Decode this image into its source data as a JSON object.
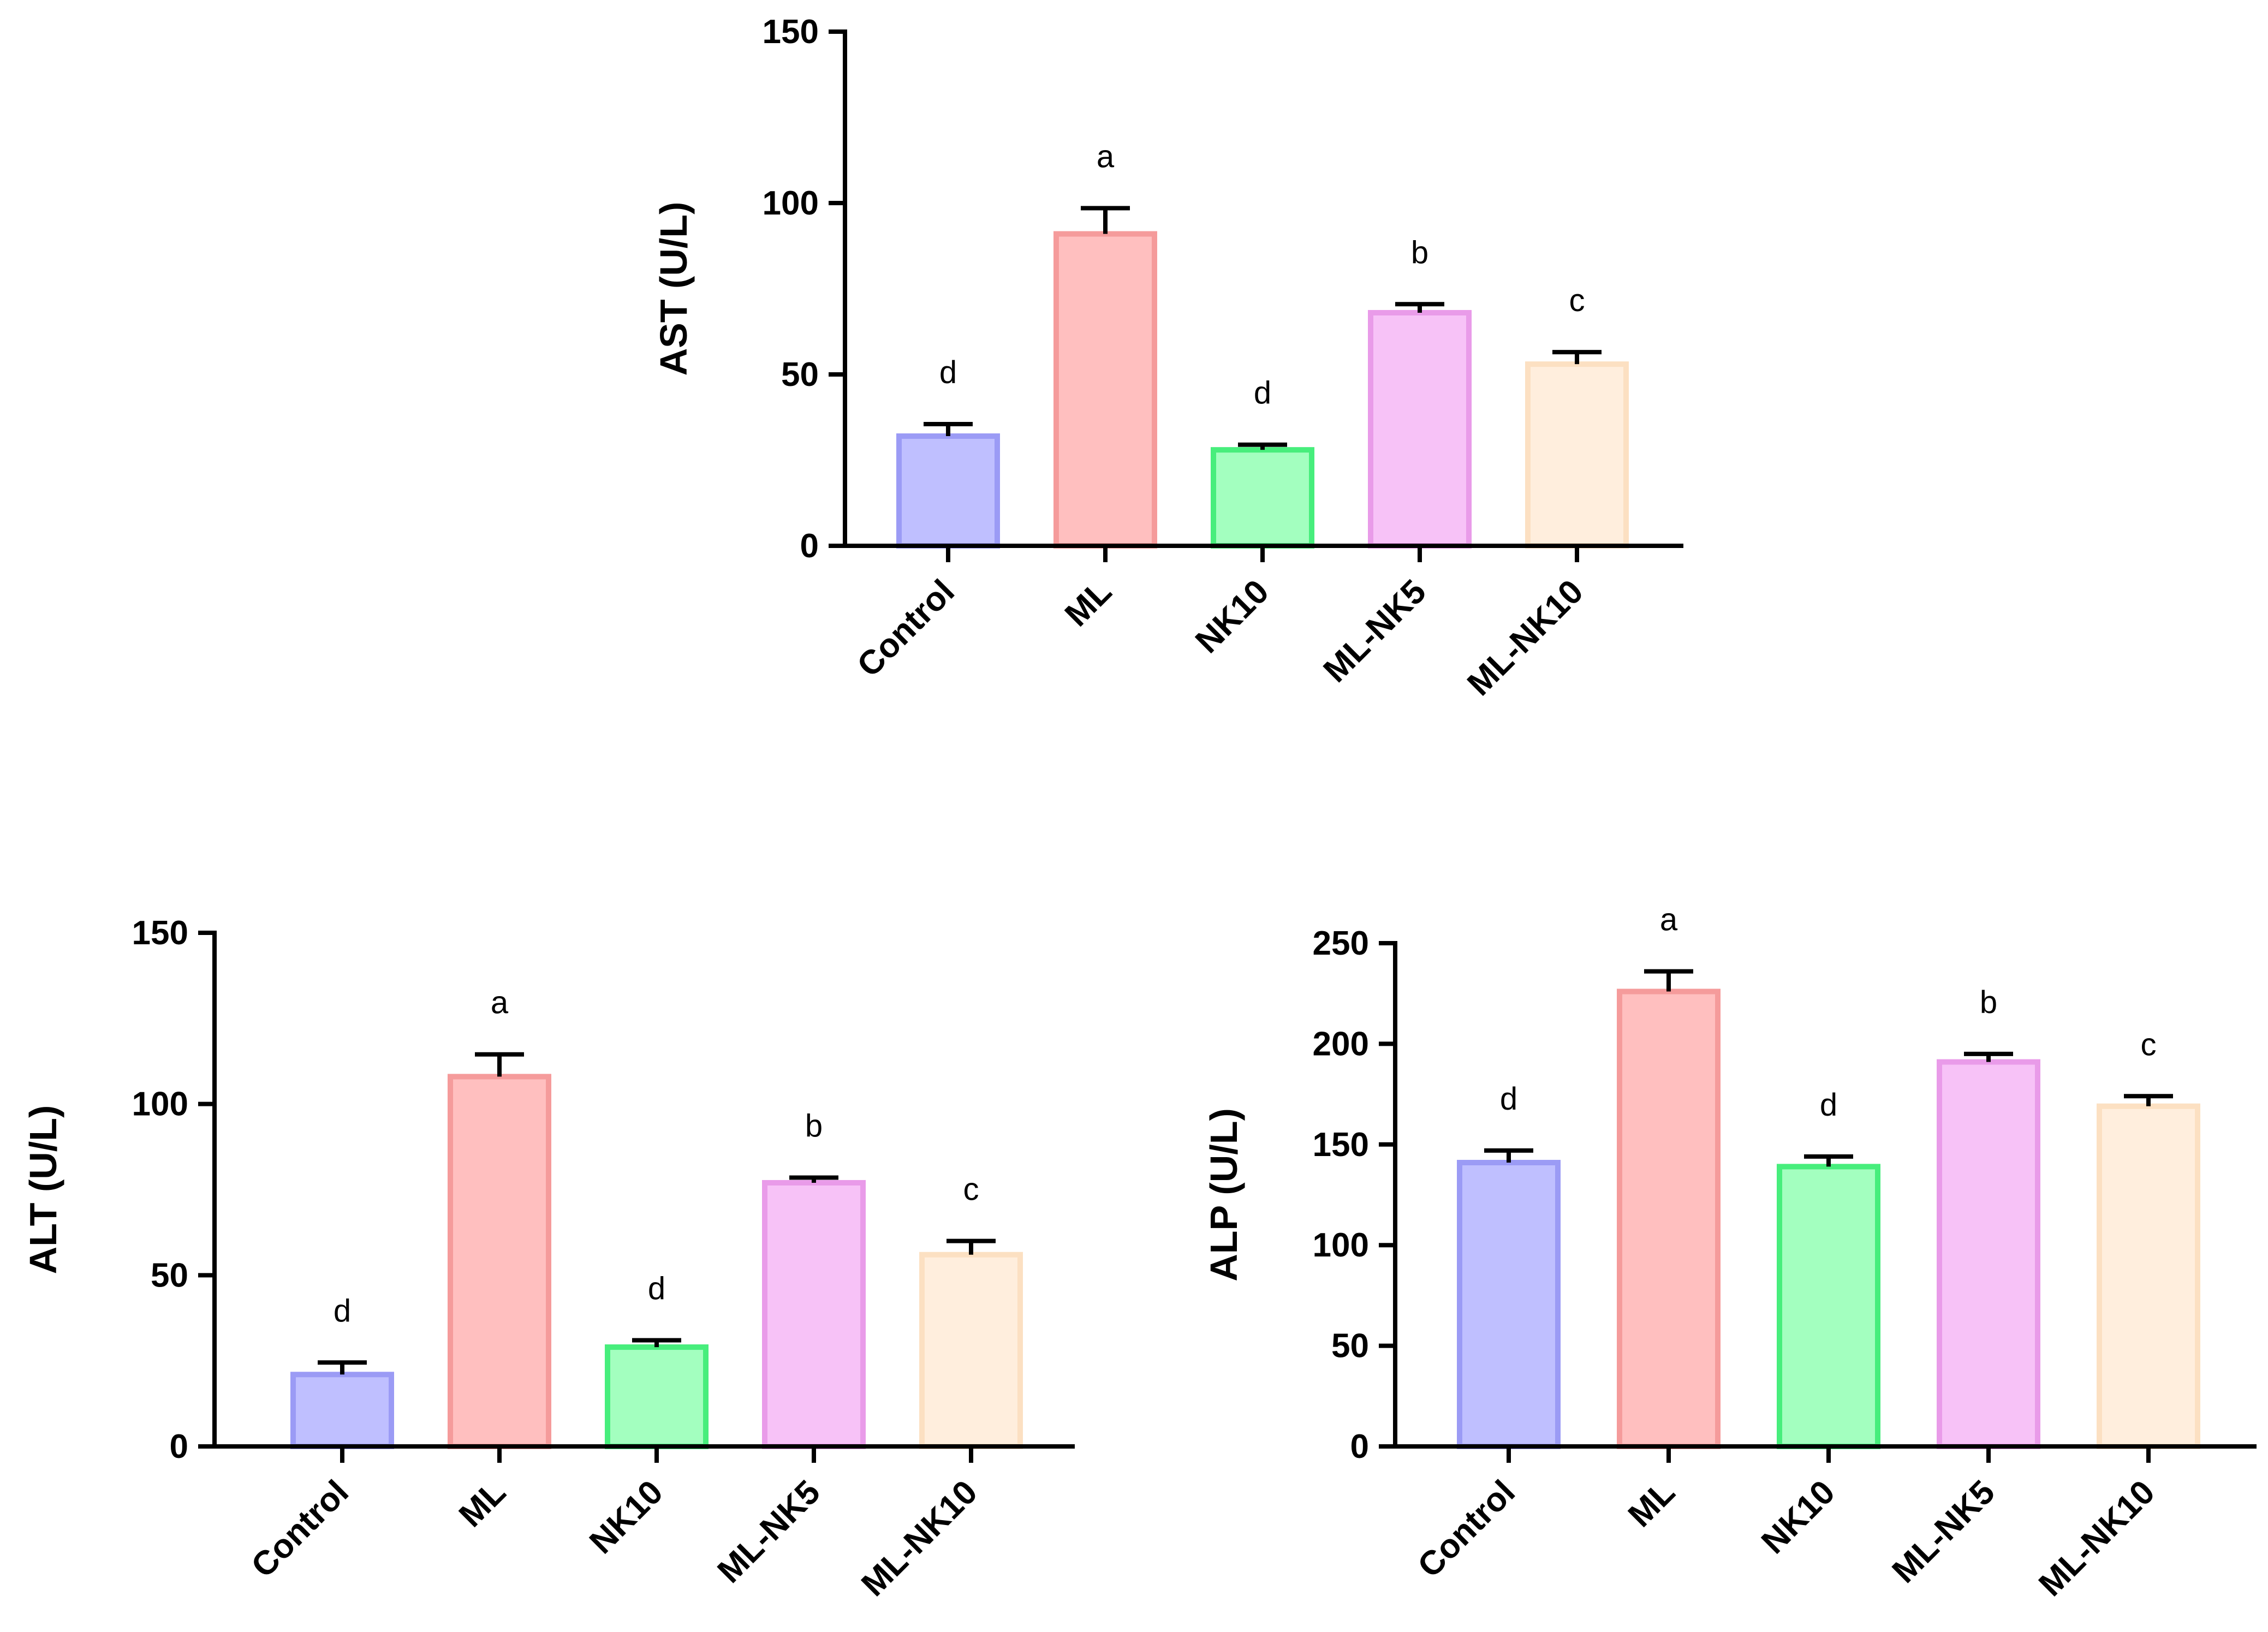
{
  "chart_data": [
    {
      "id": "ast",
      "type": "bar",
      "title": "",
      "xlabel": "",
      "ylabel": "AST (U/L)",
      "ylim": [
        0,
        150
      ],
      "yticks": [
        0,
        50,
        100,
        150
      ],
      "categories": [
        "Control",
        "ML",
        "NK10",
        "ML-NK5",
        "ML-NK10"
      ],
      "values": [
        32,
        91,
        28,
        68,
        53
      ],
      "errors": [
        3.5,
        7.5,
        1.5,
        2.5,
        3.5
      ],
      "significance": [
        "d",
        "a",
        "d",
        "b",
        "c"
      ]
    },
    {
      "id": "alt",
      "type": "bar",
      "title": "",
      "xlabel": "",
      "ylabel": "ALT (U/L)",
      "ylim": [
        0,
        150
      ],
      "yticks": [
        0,
        50,
        100,
        150
      ],
      "categories": [
        "Control",
        "ML",
        "NK10",
        "ML-NK5",
        "ML-NK10"
      ],
      "values": [
        21,
        108,
        29,
        77,
        56
      ],
      "errors": [
        3.5,
        6.5,
        2.0,
        1.5,
        4.0
      ],
      "significance": [
        "d",
        "a",
        "d",
        "b",
        "c"
      ]
    },
    {
      "id": "alp",
      "type": "bar",
      "title": "",
      "xlabel": "",
      "ylabel": "ALP (U/L)",
      "ylim": [
        0,
        250
      ],
      "yticks": [
        0,
        50,
        100,
        150,
        200,
        250
      ],
      "categories": [
        "Control",
        "ML",
        "NK10",
        "ML-NK5",
        "ML-NK10"
      ],
      "values": [
        141,
        226,
        139,
        191,
        169
      ],
      "errors": [
        6,
        10,
        5,
        4,
        5
      ],
      "significance": [
        "d",
        "a",
        "d",
        "b",
        "c"
      ]
    }
  ],
  "colors": {
    "fills": [
      "#bfbfff",
      "#ffbfbf",
      "#a3ffbf",
      "#f7c2f7",
      "#ffeedd"
    ],
    "strokes": [
      "#9b9bf5",
      "#f59b9b",
      "#47ee7c",
      "#e99be9",
      "#fce0c2"
    ]
  }
}
